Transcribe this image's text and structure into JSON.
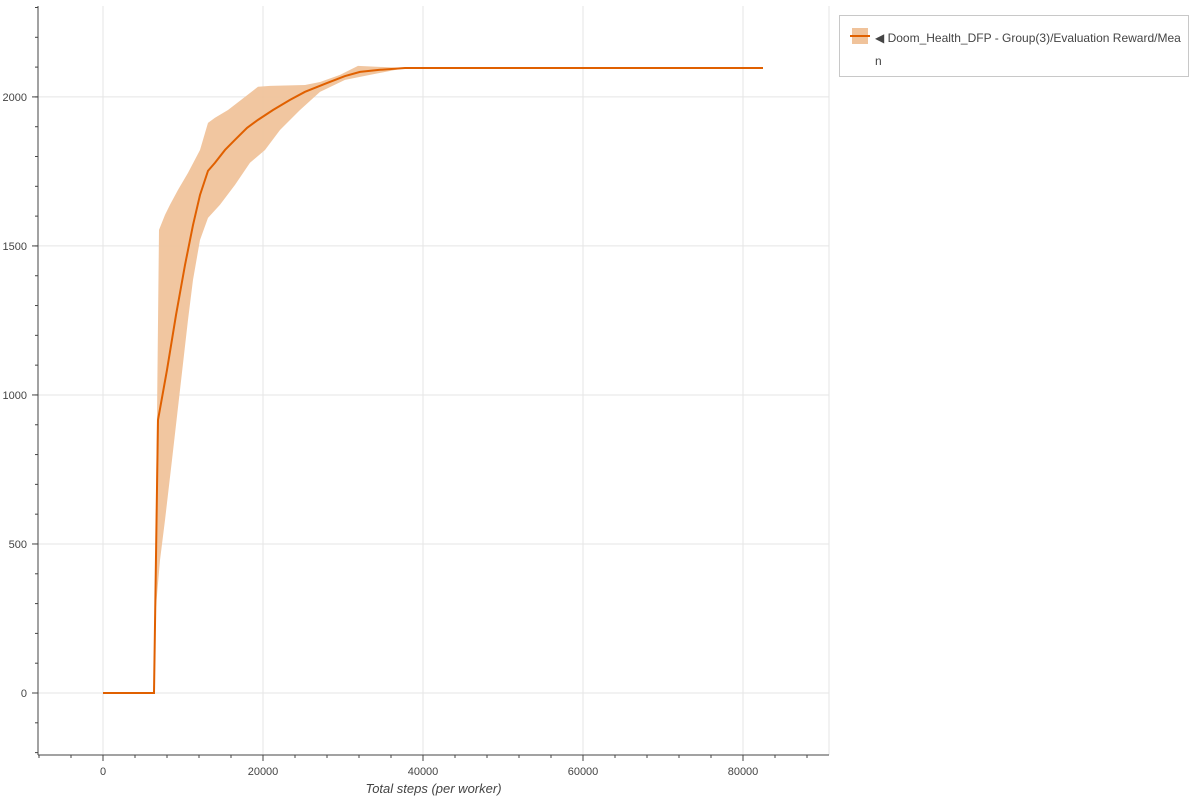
{
  "chart_data": {
    "type": "line",
    "title": "",
    "xlabel": "Total steps (per worker)",
    "ylabel": "",
    "xlim": [
      -8125,
      90750
    ],
    "ylim": [
      -208,
      2305
    ],
    "xticks": [
      0,
      20000,
      40000,
      60000,
      80000
    ],
    "yticks": [
      0,
      500,
      1000,
      1500,
      2000
    ],
    "grid": true,
    "legend_position": "outside-top-right",
    "colors": {
      "line": "#e06000",
      "band": "#f0c39b"
    },
    "series": [
      {
        "name": "◀ Doom_Health_DFP - Group(3)/Evaluation Reward/Mean",
        "mean": {
          "x": [
            0,
            6375,
            6875,
            8000,
            9125,
            10250,
            11250,
            12125,
            13125,
            14000,
            15250,
            16500,
            18000,
            19375,
            21250,
            23375,
            25250,
            27750,
            30250,
            32125,
            34625,
            37750,
            82500
          ],
          "y": [
            0,
            0,
            916,
            1084,
            1268,
            1436,
            1570,
            1671,
            1752,
            1779,
            1822,
            1856,
            1896,
            1923,
            1956,
            1990,
            2017,
            2044,
            2070,
            2084,
            2091,
            2097,
            2097
          ]
        },
        "upper": {
          "x": [
            0,
            6375,
            7000,
            7750,
            8375,
            9375,
            10625,
            12125,
            13125,
            14000,
            15625,
            17750,
            19375,
            20875,
            25250,
            27125,
            29625,
            31875,
            37750,
            82500
          ],
          "y": [
            0,
            0,
            1554,
            1604,
            1638,
            1688,
            1745,
            1822,
            1913,
            1930,
            1956,
            2000,
            2034,
            2037,
            2040,
            2050,
            2074,
            2104,
            2097,
            2097
          ]
        },
        "lower": {
          "x": [
            0,
            6375,
            6625,
            7125,
            7750,
            8625,
            9625,
            10625,
            11250,
            12125,
            13125,
            14625,
            16500,
            18375,
            20250,
            22125,
            24625,
            27125,
            30250,
            33375,
            37750,
            82500
          ],
          "y": [
            0,
            0,
            289,
            446,
            580,
            782,
            1017,
            1252,
            1386,
            1520,
            1594,
            1638,
            1705,
            1779,
            1822,
            1889,
            1956,
            2017,
            2057,
            2074,
            2097,
            2097
          ]
        }
      }
    ]
  }
}
